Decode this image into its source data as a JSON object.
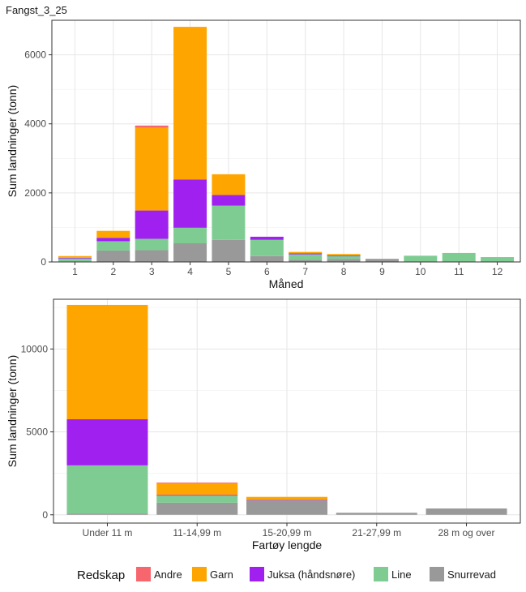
{
  "title": "Fangst_3_25",
  "colors": {
    "Andre": "#f8666d",
    "Garn": "#ffa500",
    "Juksa (håndsnøre)": "#a020f0",
    "Line": "#7fcc93",
    "Snurrevad": "#999999"
  },
  "legend": {
    "title": "Redskap",
    "entries": [
      "Andre",
      "Garn",
      "Juksa (håndsnøre)",
      "Line",
      "Snurrevad"
    ]
  },
  "chart_data": [
    {
      "type": "bar",
      "stacked": true,
      "xlabel": "Måned",
      "ylabel": "Sum landninger (tonn)",
      "ylim": [
        0,
        7000
      ],
      "yticks": [
        0,
        2000,
        4000,
        6000
      ],
      "categories": [
        "1",
        "2",
        "3",
        "4",
        "5",
        "6",
        "7",
        "8",
        "9",
        "10",
        "11",
        "12"
      ],
      "series": [
        {
          "name": "Snurrevad",
          "values": [
            20,
            330,
            340,
            540,
            640,
            170,
            60,
            90,
            90,
            0,
            0,
            0
          ]
        },
        {
          "name": "Line",
          "values": [
            80,
            270,
            330,
            450,
            990,
            470,
            160,
            90,
            0,
            180,
            260,
            140
          ]
        },
        {
          "name": "Juksa (håndsnøre)",
          "values": [
            20,
            100,
            820,
            1400,
            310,
            90,
            30,
            10,
            0,
            0,
            0,
            0
          ]
        },
        {
          "name": "Garn",
          "values": [
            50,
            200,
            2400,
            4420,
            600,
            0,
            40,
            40,
            0,
            0,
            0,
            0
          ]
        },
        {
          "name": "Andre",
          "values": [
            0,
            0,
            60,
            0,
            0,
            0,
            0,
            0,
            0,
            0,
            0,
            0
          ]
        }
      ],
      "grid": true
    },
    {
      "type": "bar",
      "stacked": true,
      "xlabel": "Fartøy lengde",
      "ylabel": "Sum landninger (tonn)",
      "ylim": [
        -500,
        13000
      ],
      "yticks": [
        0,
        5000,
        10000
      ],
      "categories": [
        "Under 11 m",
        "11-14,99 m",
        "15-20,99 m",
        "21-27,99 m",
        "28 m og over"
      ],
      "series": [
        {
          "name": "Snurrevad",
          "values": [
            80,
            730,
            830,
            120,
            380
          ]
        },
        {
          "name": "Line",
          "values": [
            2900,
            420,
            40,
            0,
            0
          ]
        },
        {
          "name": "Juksa (håndsnøre)",
          "values": [
            2780,
            50,
            20,
            0,
            0
          ]
        },
        {
          "name": "Garn",
          "values": [
            6900,
            720,
            190,
            0,
            0
          ]
        },
        {
          "name": "Andre",
          "values": [
            0,
            20,
            0,
            0,
            0
          ]
        }
      ],
      "grid": true
    }
  ],
  "legend_position": "bottom"
}
